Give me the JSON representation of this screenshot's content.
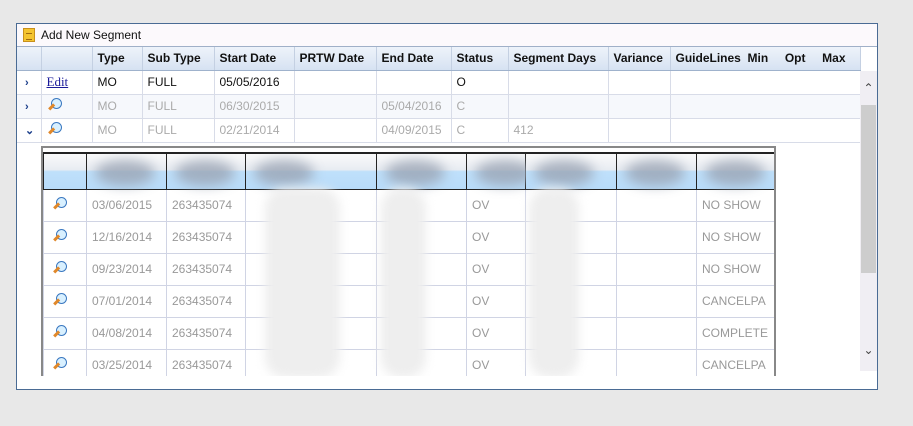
{
  "toolbar": {
    "add_label": "Add New Segment"
  },
  "columns": [
    "",
    "",
    "Type",
    "Sub Type",
    "Start Date",
    "PRTW Date",
    "End Date",
    "Status",
    "Segment Days",
    "Variance",
    "GuideLines  Min     Opt     Max"
  ],
  "rows": [
    {
      "action": "Edit",
      "type": "MO",
      "sub_type": "FULL",
      "start": "05/05/2016",
      "prtw": "",
      "end": "",
      "status": "O",
      "days": "",
      "variance": ""
    },
    {
      "action": "view",
      "type": "MO",
      "sub_type": "FULL",
      "start": "06/30/2015",
      "prtw": "",
      "end": "05/04/2016",
      "status": "C",
      "days": "",
      "variance": ""
    },
    {
      "action": "view",
      "type": "MO",
      "sub_type": "FULL",
      "start": "02/21/2014",
      "prtw": "",
      "end": "04/09/2015",
      "status": "C",
      "days": "412",
      "variance": ""
    }
  ],
  "subrows": [
    {
      "date": "03/06/2015",
      "id": "263435074",
      "type": "OV",
      "result": "NO SHOW"
    },
    {
      "date": "12/16/2014",
      "id": "263435074",
      "type": "OV",
      "result": "NO SHOW"
    },
    {
      "date": "09/23/2014",
      "id": "263435074",
      "type": "OV",
      "result": "NO SHOW"
    },
    {
      "date": "07/01/2014",
      "id": "263435074",
      "type": "OV",
      "result": "CANCELPA"
    },
    {
      "date": "04/08/2014",
      "id": "263435074",
      "type": "OV",
      "result": "COMPLETE"
    },
    {
      "date": "03/25/2014",
      "id": "263435074",
      "type": "OV",
      "result": "CANCELPA"
    }
  ],
  "icons": {
    "expand": "chevron-right-icon",
    "collapse": "chevron-down-icon",
    "view": "magnifier-icon",
    "add": "document-icon"
  }
}
